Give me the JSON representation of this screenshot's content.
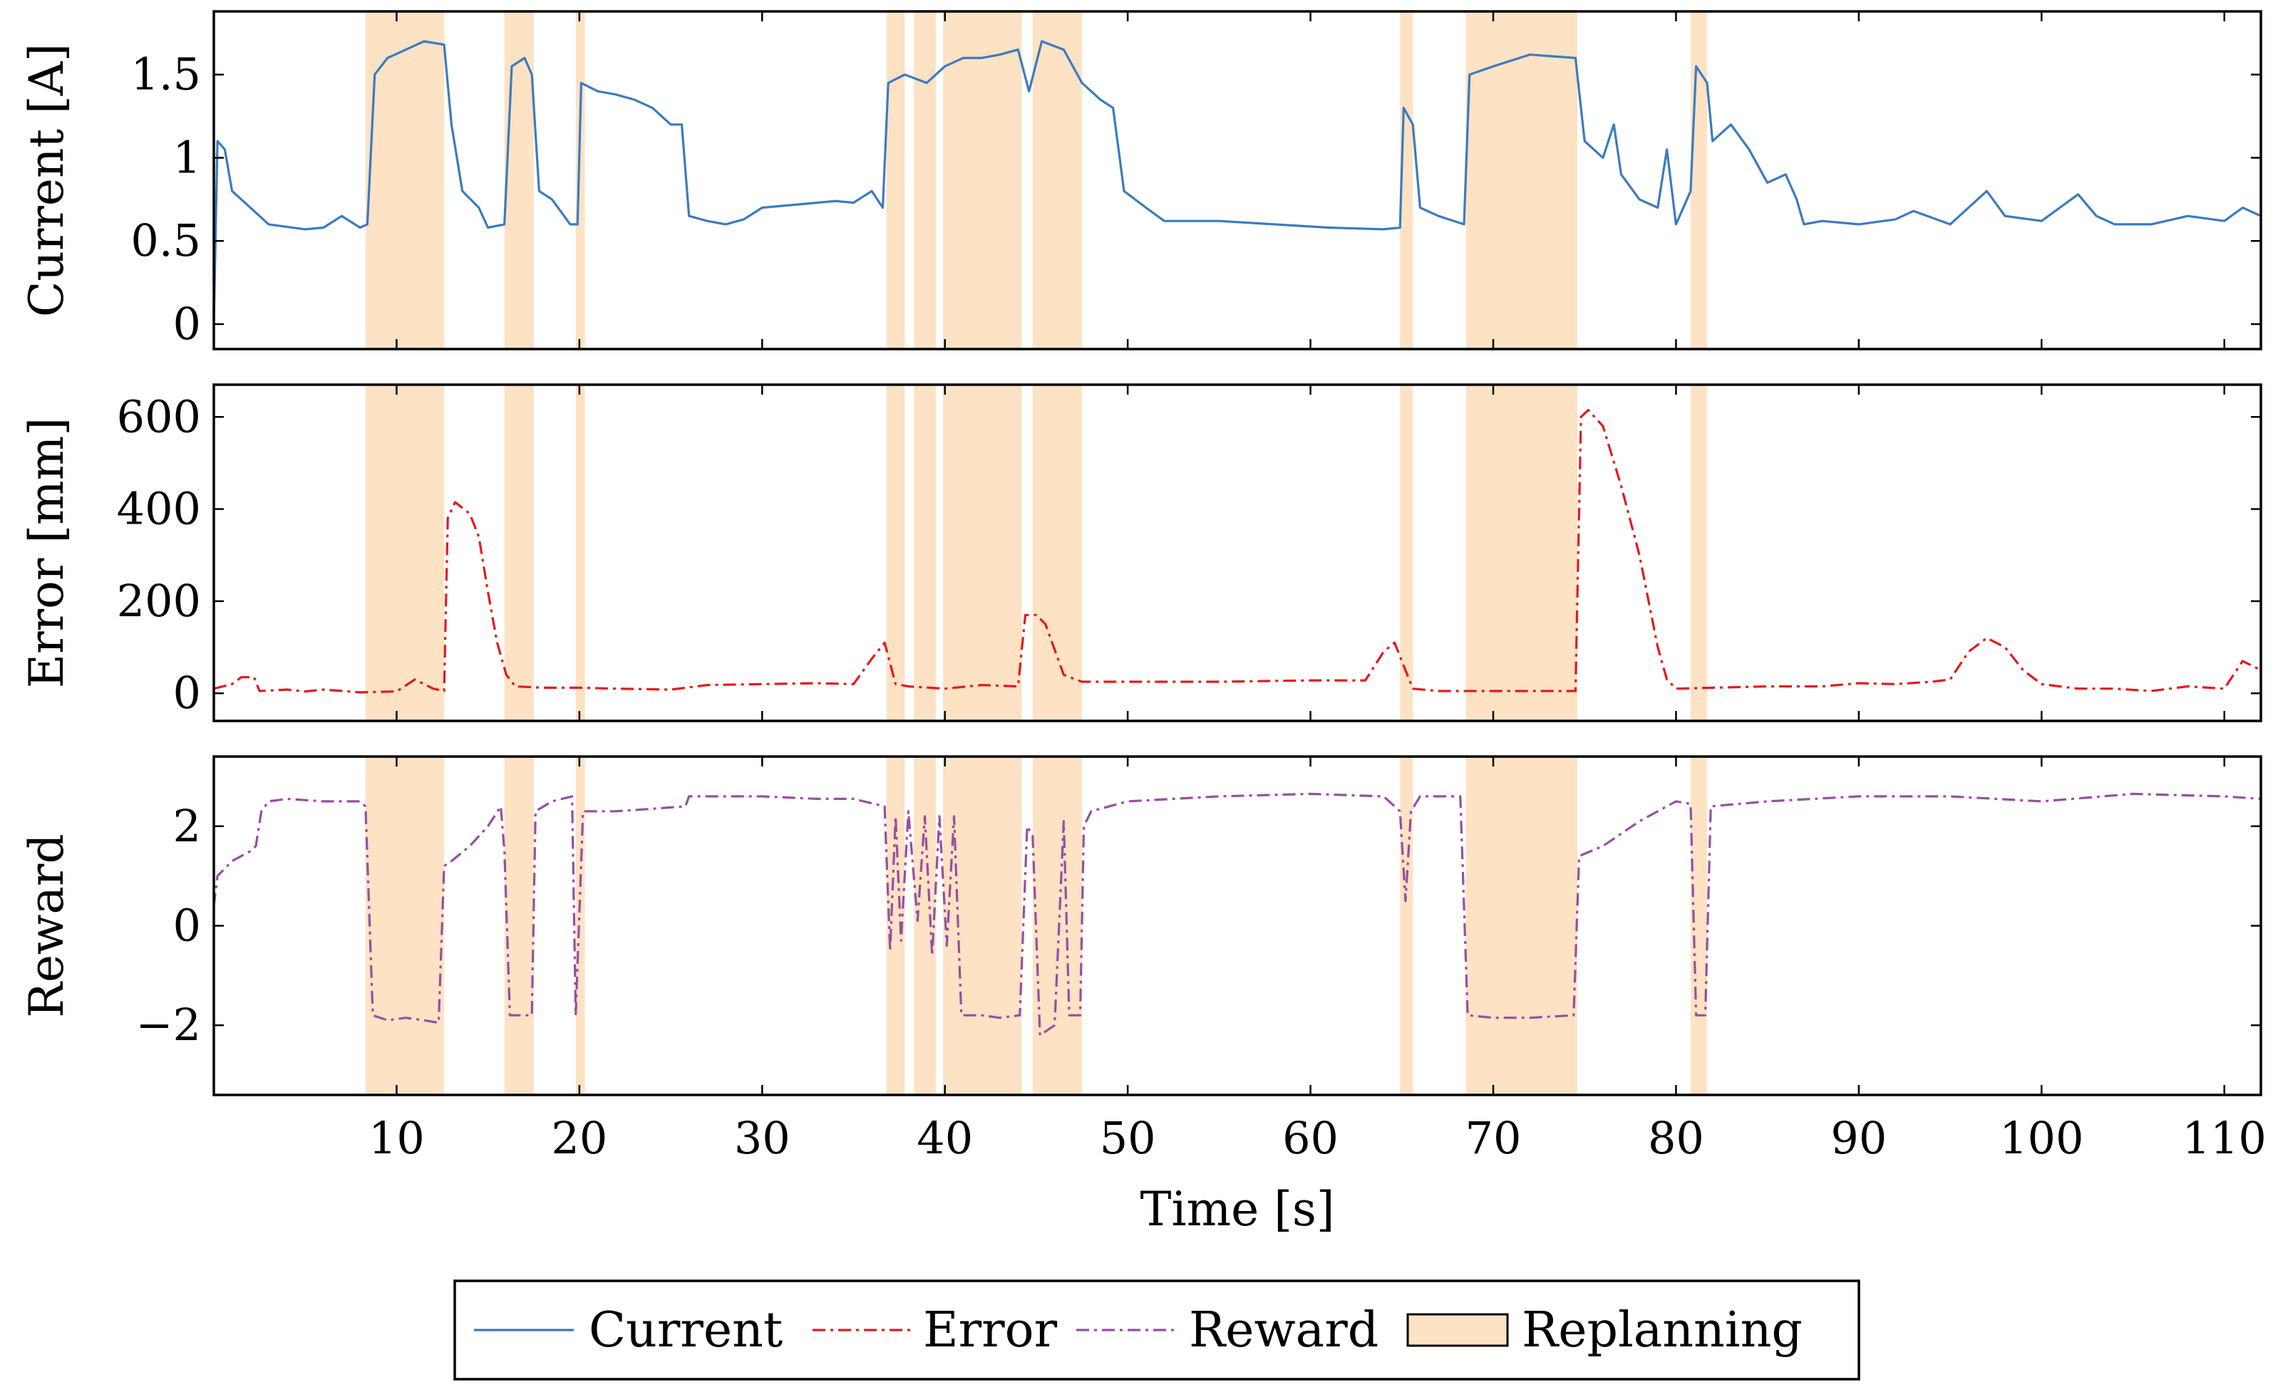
{
  "chart_data": {
    "type": "line",
    "xlabel": "Time [s]",
    "xlim": [
      0,
      112
    ],
    "xticks": [
      10,
      20,
      30,
      40,
      50,
      60,
      70,
      80,
      90,
      100,
      110
    ],
    "xtick_labels": [
      "10",
      "20",
      "30",
      "40",
      "50",
      "60",
      "70",
      "80",
      "90",
      "100",
      "110"
    ],
    "replanning_intervals": [
      [
        8.3,
        12.6
      ],
      [
        15.9,
        17.5
      ],
      [
        19.8,
        20.3
      ],
      [
        36.8,
        37.8
      ],
      [
        38.3,
        39.5
      ],
      [
        39.9,
        44.2
      ],
      [
        44.8,
        47.5
      ],
      [
        64.9,
        65.6
      ],
      [
        68.5,
        74.6
      ],
      [
        80.8,
        81.7
      ]
    ],
    "panels": [
      {
        "id": "current",
        "ylabel": "Current [A]",
        "ylim": [
          -0.15,
          1.88
        ],
        "yticks": [
          0,
          0.5,
          1,
          1.5
        ],
        "ytick_labels": [
          "0",
          "0.5",
          "1",
          "1.5"
        ],
        "series_name": "Current",
        "color": "#3b7bbf",
        "dash": "solid",
        "points": [
          [
            0,
            0
          ],
          [
            0.2,
            1.1
          ],
          [
            0.6,
            1.05
          ],
          [
            1,
            0.8
          ],
          [
            2,
            0.7
          ],
          [
            3,
            0.6
          ],
          [
            5,
            0.57
          ],
          [
            6,
            0.58
          ],
          [
            7,
            0.65
          ],
          [
            8,
            0.58
          ],
          [
            8.4,
            0.6
          ],
          [
            8.8,
            1.5
          ],
          [
            9.5,
            1.6
          ],
          [
            10.5,
            1.65
          ],
          [
            11.5,
            1.7
          ],
          [
            12.6,
            1.68
          ],
          [
            13,
            1.2
          ],
          [
            13.6,
            0.8
          ],
          [
            14.5,
            0.7
          ],
          [
            15,
            0.58
          ],
          [
            15.9,
            0.6
          ],
          [
            16.3,
            1.55
          ],
          [
            17,
            1.6
          ],
          [
            17.4,
            1.5
          ],
          [
            17.8,
            0.8
          ],
          [
            18.5,
            0.75
          ],
          [
            19.5,
            0.6
          ],
          [
            19.9,
            0.6
          ],
          [
            20.1,
            1.45
          ],
          [
            21,
            1.4
          ],
          [
            22,
            1.38
          ],
          [
            23,
            1.35
          ],
          [
            24,
            1.3
          ],
          [
            25,
            1.2
          ],
          [
            25.6,
            1.2
          ],
          [
            26,
            0.65
          ],
          [
            27,
            0.62
          ],
          [
            28,
            0.6
          ],
          [
            29,
            0.63
          ],
          [
            30,
            0.7
          ],
          [
            32,
            0.72
          ],
          [
            34,
            0.74
          ],
          [
            35,
            0.73
          ],
          [
            36,
            0.8
          ],
          [
            36.6,
            0.7
          ],
          [
            36.9,
            1.45
          ],
          [
            37.8,
            1.5
          ],
          [
            39,
            1.45
          ],
          [
            40,
            1.55
          ],
          [
            41,
            1.6
          ],
          [
            42,
            1.6
          ],
          [
            43,
            1.62
          ],
          [
            44,
            1.65
          ],
          [
            44.6,
            1.4
          ],
          [
            45.3,
            1.7
          ],
          [
            46.5,
            1.65
          ],
          [
            47.5,
            1.45
          ],
          [
            48.5,
            1.35
          ],
          [
            49.2,
            1.3
          ],
          [
            49.8,
            0.8
          ],
          [
            51,
            0.7
          ],
          [
            52,
            0.62
          ],
          [
            55,
            0.62
          ],
          [
            58,
            0.6
          ],
          [
            61,
            0.58
          ],
          [
            64,
            0.57
          ],
          [
            64.9,
            0.58
          ],
          [
            65.1,
            1.3
          ],
          [
            65.6,
            1.2
          ],
          [
            66,
            0.7
          ],
          [
            67,
            0.65
          ],
          [
            68.4,
            0.6
          ],
          [
            68.7,
            1.5
          ],
          [
            70,
            1.55
          ],
          [
            72,
            1.62
          ],
          [
            74.5,
            1.6
          ],
          [
            75,
            1.1
          ],
          [
            76,
            1.0
          ],
          [
            76.6,
            1.2
          ],
          [
            77,
            0.9
          ],
          [
            78,
            0.75
          ],
          [
            79,
            0.7
          ],
          [
            79.5,
            1.05
          ],
          [
            80,
            0.6
          ],
          [
            80.8,
            0.8
          ],
          [
            81.1,
            1.55
          ],
          [
            81.7,
            1.45
          ],
          [
            82,
            1.1
          ],
          [
            83,
            1.2
          ],
          [
            84,
            1.05
          ],
          [
            85,
            0.85
          ],
          [
            86,
            0.9
          ],
          [
            86.6,
            0.75
          ],
          [
            87,
            0.6
          ],
          [
            88,
            0.62
          ],
          [
            90,
            0.6
          ],
          [
            92,
            0.63
          ],
          [
            93,
            0.68
          ],
          [
            95,
            0.6
          ],
          [
            97,
            0.8
          ],
          [
            98,
            0.65
          ],
          [
            100,
            0.62
          ],
          [
            101,
            0.7
          ],
          [
            102,
            0.78
          ],
          [
            103,
            0.65
          ],
          [
            104,
            0.6
          ],
          [
            106,
            0.6
          ],
          [
            108,
            0.65
          ],
          [
            110,
            0.62
          ],
          [
            111,
            0.7
          ],
          [
            112,
            0.65
          ]
        ]
      },
      {
        "id": "error",
        "ylabel": "Error [mm]",
        "ylim": [
          -60,
          670
        ],
        "yticks": [
          0,
          200,
          400,
          600
        ],
        "ytick_labels": [
          "0",
          "200",
          "400",
          "600"
        ],
        "series_name": "Error",
        "color": "#e41a1c",
        "dash": "18 7 4 7",
        "points": [
          [
            0,
            10
          ],
          [
            1,
            20
          ],
          [
            1.5,
            35
          ],
          [
            2.2,
            35
          ],
          [
            2.5,
            5
          ],
          [
            4,
            8
          ],
          [
            5,
            4
          ],
          [
            6,
            8
          ],
          [
            8,
            2
          ],
          [
            10,
            4
          ],
          [
            11,
            30
          ],
          [
            12,
            10
          ],
          [
            12.6,
            5
          ],
          [
            12.8,
            380
          ],
          [
            13.2,
            415
          ],
          [
            14,
            390
          ],
          [
            14.5,
            340
          ],
          [
            15,
            220
          ],
          [
            15.5,
            110
          ],
          [
            16,
            40
          ],
          [
            16.5,
            15
          ],
          [
            18,
            12
          ],
          [
            20,
            12
          ],
          [
            22,
            10
          ],
          [
            25,
            8
          ],
          [
            27,
            18
          ],
          [
            30,
            20
          ],
          [
            33,
            22
          ],
          [
            35,
            20
          ],
          [
            36,
            75
          ],
          [
            36.7,
            110
          ],
          [
            37.3,
            20
          ],
          [
            38,
            15
          ],
          [
            40,
            10
          ],
          [
            42,
            18
          ],
          [
            44,
            15
          ],
          [
            44.4,
            170
          ],
          [
            45,
            170
          ],
          [
            45.5,
            150
          ],
          [
            46.5,
            40
          ],
          [
            47.5,
            25
          ],
          [
            50,
            25
          ],
          [
            55,
            25
          ],
          [
            60,
            28
          ],
          [
            62,
            28
          ],
          [
            63,
            28
          ],
          [
            64,
            90
          ],
          [
            64.6,
            110
          ],
          [
            65.1,
            60
          ],
          [
            65.6,
            10
          ],
          [
            67,
            5
          ],
          [
            70,
            5
          ],
          [
            72,
            5
          ],
          [
            74.5,
            5
          ],
          [
            74.8,
            600
          ],
          [
            75.2,
            615
          ],
          [
            76,
            580
          ],
          [
            77,
            450
          ],
          [
            78,
            300
          ],
          [
            79,
            100
          ],
          [
            79.5,
            30
          ],
          [
            80,
            10
          ],
          [
            82,
            12
          ],
          [
            85,
            15
          ],
          [
            88,
            15
          ],
          [
            90,
            22
          ],
          [
            92,
            20
          ],
          [
            94,
            25
          ],
          [
            95,
            30
          ],
          [
            96,
            90
          ],
          [
            97,
            120
          ],
          [
            98,
            100
          ],
          [
            99,
            50
          ],
          [
            100,
            20
          ],
          [
            102,
            10
          ],
          [
            104,
            10
          ],
          [
            106,
            5
          ],
          [
            108,
            15
          ],
          [
            110,
            10
          ],
          [
            111,
            70
          ],
          [
            112,
            50
          ]
        ]
      },
      {
        "id": "reward",
        "ylabel": "Reward",
        "ylim": [
          -3.4,
          3.4
        ],
        "yticks": [
          -2,
          0,
          2
        ],
        "ytick_labels": [
          "−2",
          "0",
          "2"
        ],
        "series_name": "Reward",
        "color": "#984ea3",
        "dash": "18 7 4 7",
        "points": [
          [
            0,
            0.4
          ],
          [
            0.2,
            1.0
          ],
          [
            1,
            1.3
          ],
          [
            2,
            1.5
          ],
          [
            2.3,
            1.6
          ],
          [
            2.6,
            2.3
          ],
          [
            3,
            2.5
          ],
          [
            4,
            2.55
          ],
          [
            6,
            2.5
          ],
          [
            8,
            2.5
          ],
          [
            8.3,
            2.4
          ],
          [
            8.7,
            -1.8
          ],
          [
            9.5,
            -1.9
          ],
          [
            10.5,
            -1.85
          ],
          [
            11.5,
            -1.9
          ],
          [
            12.3,
            -1.95
          ],
          [
            12.6,
            1.2
          ],
          [
            13,
            1.3
          ],
          [
            14,
            1.6
          ],
          [
            15,
            2.0
          ],
          [
            15.7,
            2.4
          ],
          [
            15.9,
            1.5
          ],
          [
            16.2,
            -1.8
          ],
          [
            17.4,
            -1.8
          ],
          [
            17.6,
            2.3
          ],
          [
            18.5,
            2.5
          ],
          [
            19.6,
            2.6
          ],
          [
            19.8,
            -1.8
          ],
          [
            20.2,
            2.3
          ],
          [
            22,
            2.3
          ],
          [
            24,
            2.35
          ],
          [
            25.8,
            2.4
          ],
          [
            26,
            2.6
          ],
          [
            30,
            2.6
          ],
          [
            33,
            2.55
          ],
          [
            35,
            2.55
          ],
          [
            36.7,
            2.4
          ],
          [
            37,
            -0.5
          ],
          [
            37.3,
            2.2
          ],
          [
            37.6,
            -0.3
          ],
          [
            38,
            2.3
          ],
          [
            38.5,
            0.1
          ],
          [
            38.9,
            2.2
          ],
          [
            39.3,
            -0.6
          ],
          [
            39.7,
            2.2
          ],
          [
            40.1,
            -0.4
          ],
          [
            40.5,
            2.2
          ],
          [
            40.9,
            -1.8
          ],
          [
            42,
            -1.8
          ],
          [
            43,
            -1.85
          ],
          [
            44.1,
            -1.8
          ],
          [
            44.5,
            2.0
          ],
          [
            44.8,
            1.8
          ],
          [
            45.2,
            -2.2
          ],
          [
            46,
            -2.0
          ],
          [
            46.5,
            2.1
          ],
          [
            46.8,
            -1.8
          ],
          [
            47.4,
            -1.8
          ],
          [
            47.6,
            2.0
          ],
          [
            48,
            2.3
          ],
          [
            50,
            2.5
          ],
          [
            55,
            2.6
          ],
          [
            60,
            2.65
          ],
          [
            64,
            2.6
          ],
          [
            64.9,
            2.3
          ],
          [
            65.2,
            0.5
          ],
          [
            65.5,
            2.3
          ],
          [
            66,
            2.6
          ],
          [
            68.2,
            2.6
          ],
          [
            68.6,
            -1.8
          ],
          [
            70,
            -1.85
          ],
          [
            72,
            -1.85
          ],
          [
            74.4,
            -1.8
          ],
          [
            74.7,
            1.4
          ],
          [
            76,
            1.6
          ],
          [
            78,
            2.1
          ],
          [
            80,
            2.5
          ],
          [
            80.8,
            2.45
          ],
          [
            81.1,
            -1.8
          ],
          [
            81.6,
            -1.8
          ],
          [
            81.9,
            2.4
          ],
          [
            85,
            2.5
          ],
          [
            90,
            2.6
          ],
          [
            95,
            2.6
          ],
          [
            100,
            2.5
          ],
          [
            105,
            2.65
          ],
          [
            110,
            2.6
          ],
          [
            112,
            2.55
          ]
        ]
      }
    ],
    "legend": {
      "placement": "bottom-center",
      "entries": [
        {
          "label": "Current",
          "kind": "line",
          "color": "#3b7bbf",
          "dash": "solid"
        },
        {
          "label": "Error",
          "kind": "line",
          "color": "#e41a1c",
          "dash": "18 7 4 7"
        },
        {
          "label": "Reward",
          "kind": "line",
          "color": "#984ea3",
          "dash": "18 7 4 7"
        },
        {
          "label": "Replanning",
          "kind": "patch",
          "color": "#fde2c4"
        }
      ]
    }
  }
}
